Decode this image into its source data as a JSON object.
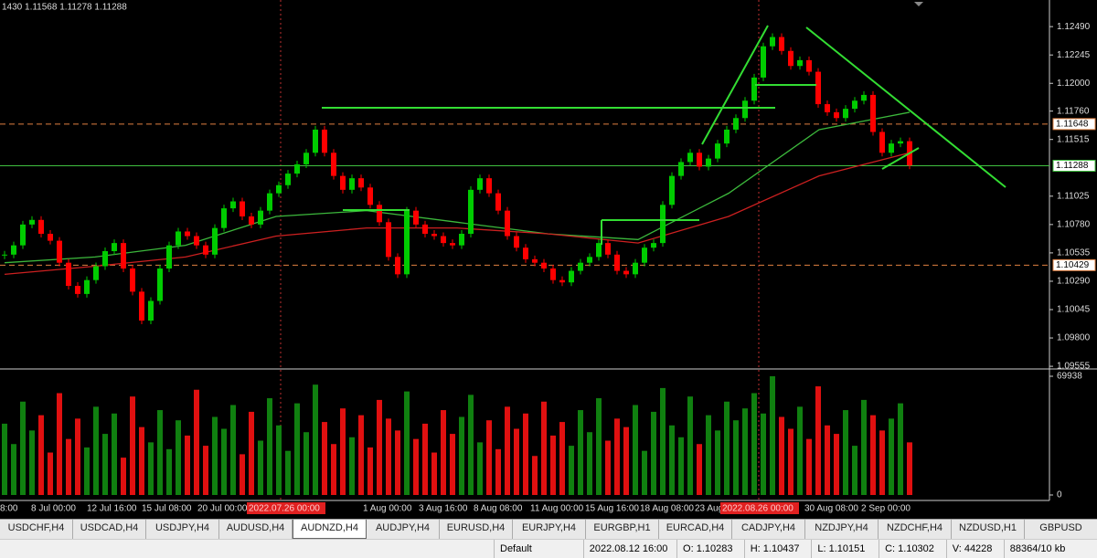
{
  "header": {
    "info": "1430 1.11568 1.11278 1.11288"
  },
  "chart_data": {
    "type": "candlestick",
    "closes": [
      1.1052,
      1.106,
      1.1078,
      1.1082,
      1.107,
      1.1064,
      1.1045,
      1.1025,
      1.1018,
      1.103,
      1.1042,
      1.1055,
      1.1062,
      1.104,
      1.102,
      1.0995,
      1.1012,
      1.104,
      1.106,
      1.1072,
      1.1068,
      1.106,
      1.1052,
      1.1075,
      1.1092,
      1.1098,
      1.1085,
      1.1078,
      1.109,
      1.1105,
      1.1112,
      1.1122,
      1.113,
      1.114,
      1.116,
      1.114,
      1.112,
      1.1108,
      1.1118,
      1.111,
      1.1095,
      1.108,
      1.105,
      1.1035,
      1.109,
      1.1078,
      1.107,
      1.1068,
      1.1062,
      1.106,
      1.107,
      1.1108,
      1.1118,
      1.1105,
      1.109,
      1.1068,
      1.1058,
      1.1048,
      1.1045,
      1.104,
      1.103,
      1.1028,
      1.1038,
      1.1045,
      1.105,
      1.1062,
      1.1052,
      1.1038,
      1.1035,
      1.1045,
      1.1058,
      1.1062,
      1.1095,
      1.112,
      1.1132,
      1.114,
      1.1128,
      1.1135,
      1.1148,
      1.116,
      1.117,
      1.1185,
      1.1205,
      1.1232,
      1.124,
      1.1228,
      1.1215,
      1.122,
      1.121,
      1.1182,
      1.1175,
      1.117,
      1.1178,
      1.1185,
      1.119,
      1.1158,
      1.114,
      1.1148,
      1.115,
      1.1129
    ],
    "up_color": "#00cc00",
    "down_color": "#ff0000",
    "ylim": [
      1.0954,
      1.1272
    ],
    "yticks": [
      {
        "value": 1.1249,
        "label": "1.12490"
      },
      {
        "value": 1.12245,
        "label": "1.12245"
      },
      {
        "value": 1.12,
        "label": "1.12000"
      },
      {
        "value": 1.1176,
        "label": "1.11760"
      },
      {
        "value": 1.11515,
        "label": "1.11515"
      },
      {
        "value": 1.11025,
        "label": "1.11025"
      },
      {
        "value": 1.1078,
        "label": "1.10780"
      },
      {
        "value": 1.10535,
        "label": "1.10535"
      },
      {
        "value": 1.1029,
        "label": "1.10290"
      },
      {
        "value": 1.10045,
        "label": "1.10045"
      },
      {
        "value": 1.098,
        "label": "1.09800"
      },
      {
        "value": 1.09555,
        "label": "1.09555"
      }
    ],
    "levels": [
      {
        "value": 1.11648,
        "label": "1.11648",
        "color": "#e08040",
        "dashed": true
      },
      {
        "value": 1.11288,
        "label": "1.11288",
        "color": "#40c040",
        "dashed": false
      },
      {
        "value": 1.10429,
        "label": "1.10429",
        "color": "#e08040",
        "dashed": true
      }
    ],
    "averages": [
      {
        "color": "#3cb83c",
        "values": [
          1.1045,
          1.105,
          1.106,
          1.1085,
          1.109,
          1.108,
          1.107,
          1.1065,
          1.1105,
          1.116,
          1.1175
        ]
      },
      {
        "color": "#cc2020",
        "values": [
          1.1035,
          1.1042,
          1.105,
          1.1068,
          1.1075,
          1.1075,
          1.107,
          1.1062,
          1.1085,
          1.112,
          1.114
        ]
      }
    ],
    "volume": {
      "values": [
        42000,
        30000,
        55000,
        38000,
        47000,
        25000,
        60000,
        33000,
        45000,
        28000,
        52000,
        36000,
        48000,
        22000,
        58000,
        40000,
        31000,
        50000,
        27000,
        44000,
        35000,
        62000,
        29000,
        46000,
        39000,
        53000,
        24000,
        49000,
        32000,
        57000,
        41000,
        26000,
        54000,
        37000,
        65000,
        43000,
        30000,
        51000,
        34000,
        47000,
        28000,
        56000,
        45000,
        38000,
        61000,
        33000,
        42000,
        25000,
        50000,
        36000,
        46000,
        59000,
        31000,
        44000,
        27000,
        52000,
        39000,
        48000,
        23000,
        55000,
        35000,
        43000,
        29000,
        50000,
        37000,
        57000,
        32000,
        45000,
        40000,
        53000,
        26000,
        49000,
        63000,
        41000,
        34000,
        58000,
        30000,
        47000,
        38000,
        55000,
        44000,
        51000,
        60000,
        48000,
        69938,
        46000,
        39000,
        52000,
        33000,
        64000,
        41000,
        36000,
        50000,
        29000,
        56000,
        47000,
        38000,
        45000,
        54000,
        31000
      ],
      "ylim": [
        0,
        69938
      ],
      "yticks": [
        69938,
        0
      ]
    },
    "xtick_labels": [
      "8:00",
      "8 Jul 00:00",
      "12 Jul 16:00",
      "15 Jul 08:00",
      "20 Jul 00:00",
      "2022.07.26 00:00",
      "1 Aug 00:00",
      "3 Aug 16:00",
      "8 Aug 08:00",
      "11 Aug 00:00",
      "15 Aug 16:00",
      "18 Aug 08:00",
      "23 Aug",
      "2022.08.26 00:00",
      "30 Aug 08:00",
      "2 Sep 00:00"
    ]
  },
  "tabs": {
    "items": [
      "USDCHF,H4",
      "USDCAD,H4",
      "USDJPY,H4",
      "AUDUSD,H4",
      "AUDNZD,H4",
      "AUDJPY,H4",
      "EURUSD,H4",
      "EURJPY,H4",
      "EURGBP,H1",
      "EURCAD,H4",
      "CADJPY,H4",
      "NZDJPY,H4",
      "NZDCHF,H4",
      "NZDUSD,H1",
      "GBPUSD"
    ],
    "active": 4
  },
  "status": {
    "profile": "Default",
    "time": "2022.08.12 16:00",
    "open": "O: 1.10283",
    "high": "H: 1.10437",
    "low": "L: 1.10151",
    "close": "C: 1.10302",
    "volume": "V: 44228",
    "traffic": "88364/10 kb"
  }
}
